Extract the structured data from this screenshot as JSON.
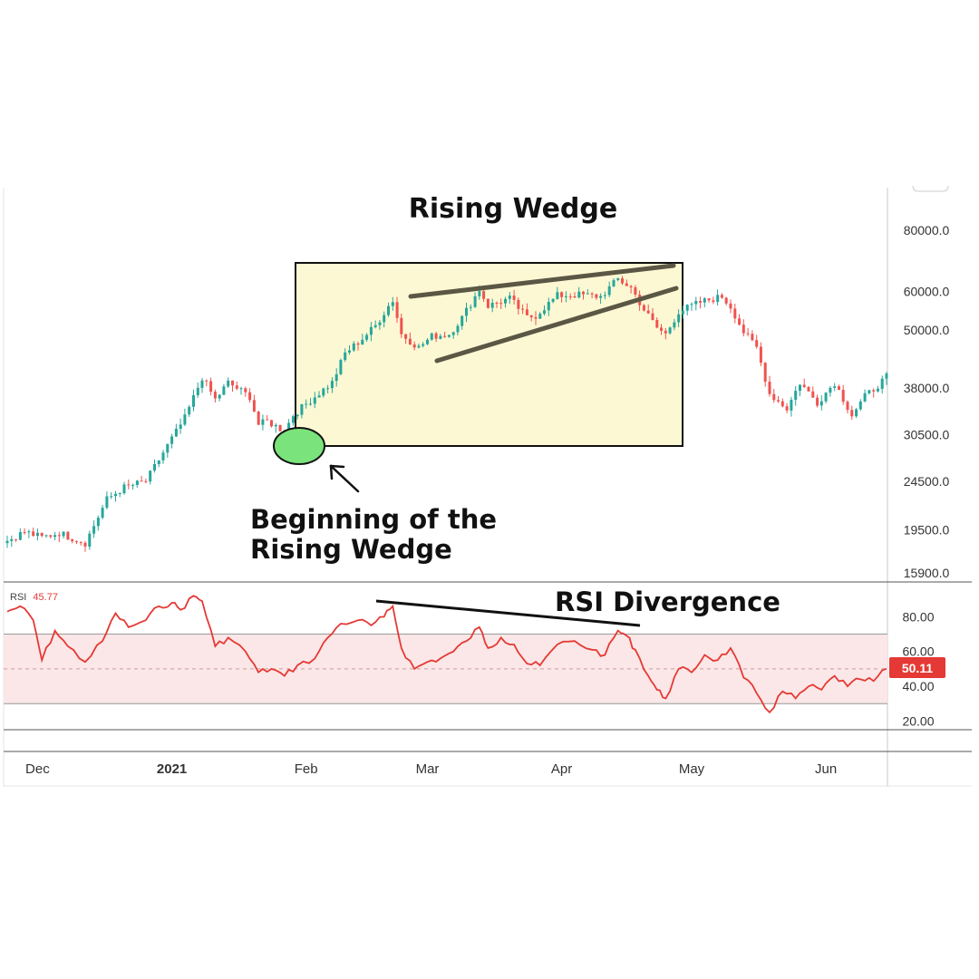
{
  "colors": {
    "up": "#26a69a",
    "down": "#ef5350",
    "rsi_line": "#e53935",
    "rsi_band": "#fbe7e7",
    "wedge_box_fill": "#fdf8d4",
    "wedge_line": "#5b5745",
    "highlight_fill": "#7be37b",
    "badge": "#e53935"
  },
  "annotations": {
    "title": "Rising Wedge",
    "beginning_line1": "Beginning of the",
    "beginning_line2": "Rising Wedge",
    "divergence": "RSI Divergence"
  },
  "indicator": {
    "name": "RSI",
    "value": "45.77",
    "badge_value": "50.11"
  },
  "chart_data": [
    {
      "type": "candlestick",
      "price_axis": {
        "scale": "log",
        "ticks": [
          "80000.0",
          "60000.0",
          "50000.0",
          "38000.0",
          "30500.0",
          "24500.0",
          "19500.0",
          "15900.0"
        ]
      },
      "time_axis": {
        "range": [
          "2020-11-24",
          "2021-06-15"
        ],
        "labels": [
          {
            "label": "Dec",
            "date": "2020-12-01"
          },
          {
            "label": "2021",
            "date": "2021-01-01",
            "bold": true
          },
          {
            "label": "Feb",
            "date": "2021-02-01"
          },
          {
            "label": "Mar",
            "date": "2021-03-01"
          },
          {
            "label": "Apr",
            "date": "2021-04-01"
          },
          {
            "label": "May",
            "date": "2021-05-01"
          },
          {
            "label": "Jun",
            "date": "2021-06-01"
          }
        ]
      },
      "series": [
        {
          "close_waypoints": [
            [
              "2020-11-24",
              18500
            ],
            [
              "2020-11-28",
              19300
            ],
            [
              "2020-12-02",
              18800
            ],
            [
              "2020-12-06",
              19200
            ],
            [
              "2020-12-12",
              18300
            ],
            [
              "2020-12-17",
              22500
            ],
            [
              "2020-12-21",
              23800
            ],
            [
              "2020-12-26",
              24500
            ],
            [
              "2020-12-31",
              29000
            ],
            [
              "2021-01-04",
              33000
            ],
            [
              "2021-01-08",
              40000
            ],
            [
              "2021-01-11",
              36000
            ],
            [
              "2021-01-14",
              39000
            ],
            [
              "2021-01-19",
              36500
            ],
            [
              "2021-01-21",
              32000
            ],
            [
              "2021-01-23",
              32500
            ],
            [
              "2021-01-27",
              31000
            ],
            [
              "2021-01-29",
              33500
            ],
            [
              "2021-02-03",
              36500
            ],
            [
              "2021-02-07",
              39000
            ],
            [
              "2021-02-10",
              44800
            ],
            [
              "2021-02-14",
              48000
            ],
            [
              "2021-02-17",
              51000
            ],
            [
              "2021-02-20",
              56000
            ],
            [
              "2021-02-21",
              57500
            ],
            [
              "2021-02-23",
              49000
            ],
            [
              "2021-02-27",
              46000
            ],
            [
              "2021-03-02",
              48500
            ],
            [
              "2021-03-06",
              49000
            ],
            [
              "2021-03-09",
              53000
            ],
            [
              "2021-03-13",
              60500
            ],
            [
              "2021-03-15",
              56000
            ],
            [
              "2021-03-20",
              58000
            ],
            [
              "2021-03-24",
              53000
            ],
            [
              "2021-03-26",
              53500
            ],
            [
              "2021-03-31",
              58800
            ],
            [
              "2021-04-05",
              59000
            ],
            [
              "2021-04-10",
              58500
            ],
            [
              "2021-04-14",
              63500
            ],
            [
              "2021-04-17",
              61000
            ],
            [
              "2021-04-20",
              55000
            ],
            [
              "2021-04-23",
              50500
            ],
            [
              "2021-04-25",
              49000
            ],
            [
              "2021-04-28",
              54500
            ],
            [
              "2021-05-03",
              57000
            ],
            [
              "2021-05-08",
              58500
            ],
            [
              "2021-05-10",
              55800
            ],
            [
              "2021-05-13",
              49500
            ],
            [
              "2021-05-16",
              46000
            ],
            [
              "2021-05-19",
              37000
            ],
            [
              "2021-05-23",
              34500
            ],
            [
              "2021-05-26",
              39000
            ],
            [
              "2021-05-30",
              35500
            ],
            [
              "2021-06-03",
              39000
            ],
            [
              "2021-06-07",
              33500
            ],
            [
              "2021-06-10",
              36500
            ],
            [
              "2021-06-15",
              40000
            ]
          ]
        }
      ]
    },
    {
      "type": "line",
      "name": "RSI",
      "y_axis": {
        "ticks": [
          "80.00",
          "60.00",
          "40.00",
          "20.00"
        ],
        "range": [
          15,
          100
        ]
      },
      "band": [
        30,
        70
      ],
      "midline": 50,
      "series": [
        {
          "name": "RSI",
          "points": [
            [
              "2020-11-24",
              83
            ],
            [
              "2020-11-27",
              86
            ],
            [
              "2020-11-30",
              78
            ],
            [
              "2020-12-02",
              55
            ],
            [
              "2020-12-05",
              72
            ],
            [
              "2020-12-08",
              63
            ],
            [
              "2020-12-12",
              54
            ],
            [
              "2020-12-16",
              66
            ],
            [
              "2020-12-19",
              82
            ],
            [
              "2020-12-22",
              74
            ],
            [
              "2020-12-26",
              78
            ],
            [
              "2020-12-29",
              86
            ],
            [
              "2021-01-01",
              88
            ],
            [
              "2021-01-03",
              84
            ],
            [
              "2021-01-06",
              92
            ],
            [
              "2021-01-08",
              89
            ],
            [
              "2021-01-11",
              63
            ],
            [
              "2021-01-14",
              68
            ],
            [
              "2021-01-18",
              60
            ],
            [
              "2021-01-21",
              48
            ],
            [
              "2021-01-24",
              50
            ],
            [
              "2021-01-27",
              46
            ],
            [
              "2021-01-30",
              52
            ],
            [
              "2021-02-03",
              56
            ],
            [
              "2021-02-06",
              68
            ],
            [
              "2021-02-09",
              76
            ],
            [
              "2021-02-13",
              78
            ],
            [
              "2021-02-16",
              75
            ],
            [
              "2021-02-19",
              80
            ],
            [
              "2021-02-21",
              86
            ],
            [
              "2021-02-23",
              62
            ],
            [
              "2021-02-26",
              50
            ],
            [
              "2021-03-01",
              54
            ],
            [
              "2021-03-04",
              56
            ],
            [
              "2021-03-07",
              60
            ],
            [
              "2021-03-10",
              66
            ],
            [
              "2021-03-13",
              74
            ],
            [
              "2021-03-15",
              62
            ],
            [
              "2021-03-18",
              68
            ],
            [
              "2021-03-21",
              64
            ],
            [
              "2021-03-24",
              53
            ],
            [
              "2021-03-27",
              52
            ],
            [
              "2021-03-31",
              64
            ],
            [
              "2021-04-04",
              66
            ],
            [
              "2021-04-08",
              61
            ],
            [
              "2021-04-11",
              58
            ],
            [
              "2021-04-14",
              72
            ],
            [
              "2021-04-16",
              69
            ],
            [
              "2021-04-18",
              61
            ],
            [
              "2021-04-21",
              46
            ],
            [
              "2021-04-23",
              38
            ],
            [
              "2021-04-25",
              33
            ],
            [
              "2021-04-28",
              50
            ],
            [
              "2021-05-01",
              48
            ],
            [
              "2021-05-04",
              58
            ],
            [
              "2021-05-07",
              55
            ],
            [
              "2021-05-10",
              62
            ],
            [
              "2021-05-13",
              45
            ],
            [
              "2021-05-16",
              36
            ],
            [
              "2021-05-19",
              25
            ],
            [
              "2021-05-22",
              37
            ],
            [
              "2021-05-25",
              33
            ],
            [
              "2021-05-28",
              40
            ],
            [
              "2021-05-31",
              38
            ],
            [
              "2021-06-03",
              46
            ],
            [
              "2021-06-06",
              40
            ],
            [
              "2021-06-09",
              44
            ],
            [
              "2021-06-12",
              43
            ],
            [
              "2021-06-15",
              50.11
            ]
          ]
        }
      ]
    }
  ]
}
